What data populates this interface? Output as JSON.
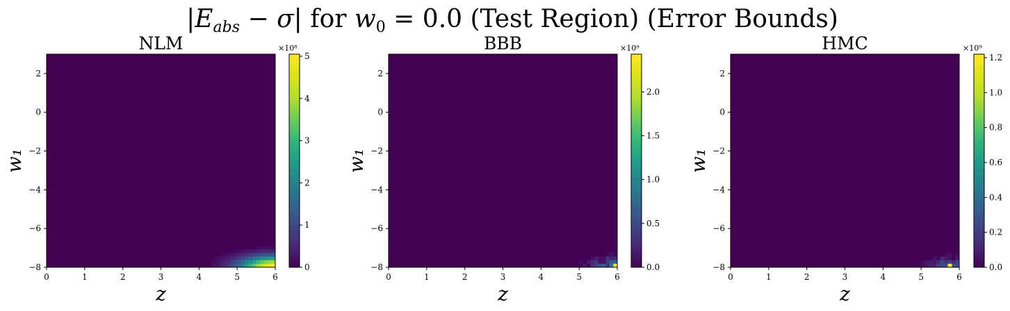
{
  "figure": {
    "title": "|E_abs − σ| for w₀ = 0.0 (Test Region) (Error Bounds)"
  },
  "chart_data": [
    {
      "type": "heatmap",
      "title": "NLM",
      "xlabel": "z",
      "ylabel": "w₁",
      "xlim": [
        0,
        6
      ],
      "ylim": [
        -8,
        3
      ],
      "xticks": [
        "0",
        "1",
        "2",
        "3",
        "4",
        "5",
        "6"
      ],
      "yticks": [
        "−8",
        "−6",
        "−4",
        "−2",
        "0",
        "2"
      ],
      "colormap": "viridis",
      "colorbar": {
        "range": [
          0,
          5.05
        ],
        "ticks": [
          "0",
          "1",
          "2",
          "3",
          "4",
          "5"
        ],
        "multiplier": "×10⁸"
      },
      "hotspot": {
        "pattern": "smooth",
        "peak_at": [
          6,
          -8
        ],
        "peak_value": 5.05
      }
    },
    {
      "type": "heatmap",
      "title": "BBB",
      "xlabel": "z",
      "ylabel": "w₁",
      "xlim": [
        0,
        6
      ],
      "ylim": [
        -8,
        3
      ],
      "xticks": [
        "0",
        "1",
        "2",
        "3",
        "4",
        "5",
        "6"
      ],
      "yticks": [
        "−8",
        "−6",
        "−4",
        "−2",
        "0",
        "2"
      ],
      "colormap": "viridis",
      "colorbar": {
        "range": [
          0,
          2.43
        ],
        "ticks": [
          "0.0",
          "0.5",
          "1.0",
          "1.5",
          "2.0"
        ],
        "multiplier": "×10⁹"
      },
      "hotspot": {
        "pattern": "speckled",
        "peak_at": [
          5.95,
          -7.95
        ],
        "peak_value": 2.43
      }
    },
    {
      "type": "heatmap",
      "title": "HMC",
      "xlabel": "z",
      "ylabel": "w₁",
      "xlim": [
        0,
        6
      ],
      "ylim": [
        -8,
        3
      ],
      "xticks": [
        "0",
        "1",
        "2",
        "3",
        "4",
        "5",
        "6"
      ],
      "yticks": [
        "−8",
        "−6",
        "−4",
        "−2",
        "0",
        "2"
      ],
      "colormap": "viridis",
      "colorbar": {
        "range": [
          0,
          1.22
        ],
        "ticks": [
          "0.0",
          "0.2",
          "0.4",
          "0.6",
          "0.8",
          "1.0",
          "1.2"
        ],
        "multiplier": "×10⁹"
      },
      "hotspot": {
        "pattern": "speckled",
        "peak_at": [
          5.75,
          -7.85
        ],
        "peak_value": 1.22
      }
    }
  ]
}
